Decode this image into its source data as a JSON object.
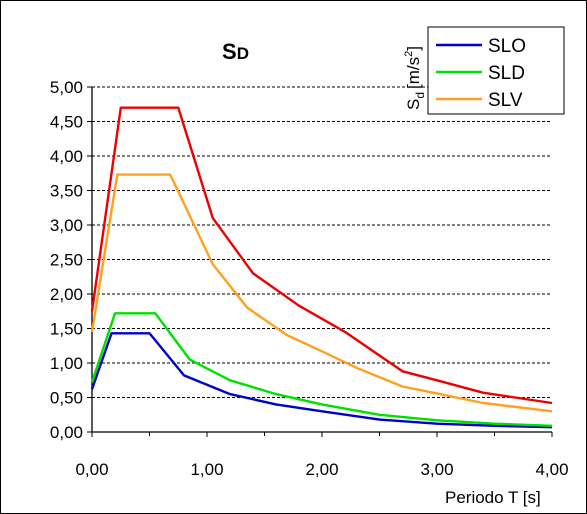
{
  "chart_data": {
    "type": "line",
    "title": "SD",
    "xlabel": "Periodo T [s]",
    "ylabel": "Sd [m/s2]",
    "ylabel_parts": {
      "main": "S",
      "sub": "d",
      "unit": "[m/s",
      "sup": "2",
      "close": "]"
    },
    "xlim": [
      0,
      4
    ],
    "ylim": [
      0,
      5
    ],
    "x_ticks": [
      "0,00",
      "1,00",
      "2,00",
      "3,00",
      "4,00"
    ],
    "x_tick_values": [
      0,
      1,
      2,
      3,
      4
    ],
    "y_ticks": [
      "0,00",
      "0,50",
      "1,00",
      "1,50",
      "2,00",
      "2,50",
      "3,00",
      "3,50",
      "4,00",
      "4,50",
      "5,00"
    ],
    "y_tick_values": [
      0,
      0.5,
      1,
      1.5,
      2,
      2.5,
      3,
      3.5,
      4,
      4.5,
      5
    ],
    "grid": "horizontal dashed",
    "legend_position": "top-right",
    "series": [
      {
        "name": "SLO",
        "color": "#0000cc",
        "points": [
          [
            0,
            0.62
          ],
          [
            0.17,
            1.43
          ],
          [
            0.5,
            1.43
          ],
          [
            0.8,
            0.82
          ],
          [
            1.2,
            0.55
          ],
          [
            1.6,
            0.4
          ],
          [
            2.0,
            0.3
          ],
          [
            2.5,
            0.18
          ],
          [
            3.0,
            0.12
          ],
          [
            3.5,
            0.09
          ],
          [
            4.0,
            0.07
          ]
        ]
      },
      {
        "name": "SLD",
        "color": "#00e000",
        "points": [
          [
            0,
            0.72
          ],
          [
            0.2,
            1.72
          ],
          [
            0.55,
            1.72
          ],
          [
            0.85,
            1.05
          ],
          [
            1.2,
            0.75
          ],
          [
            1.6,
            0.55
          ],
          [
            2.0,
            0.4
          ],
          [
            2.5,
            0.25
          ],
          [
            3.0,
            0.17
          ],
          [
            3.5,
            0.12
          ],
          [
            4.0,
            0.09
          ]
        ]
      },
      {
        "name": "SLV",
        "color": "#ffa020",
        "points": [
          [
            0,
            1.45
          ],
          [
            0.22,
            3.73
          ],
          [
            0.68,
            3.73
          ],
          [
            1.05,
            2.43
          ],
          [
            1.35,
            1.8
          ],
          [
            1.7,
            1.4
          ],
          [
            2.0,
            1.17
          ],
          [
            2.3,
            0.93
          ],
          [
            2.7,
            0.66
          ],
          [
            3.0,
            0.56
          ],
          [
            3.4,
            0.42
          ],
          [
            4.0,
            0.3
          ]
        ]
      },
      {
        "color": "#ee0000",
        "points": [
          [
            0,
            1.75
          ],
          [
            0.25,
            4.7
          ],
          [
            0.75,
            4.7
          ],
          [
            1.05,
            3.1
          ],
          [
            1.4,
            2.3
          ],
          [
            1.8,
            1.83
          ],
          [
            2.2,
            1.45
          ],
          [
            2.7,
            0.88
          ],
          [
            3.0,
            0.75
          ],
          [
            3.4,
            0.57
          ],
          [
            4.0,
            0.42
          ]
        ]
      }
    ]
  }
}
